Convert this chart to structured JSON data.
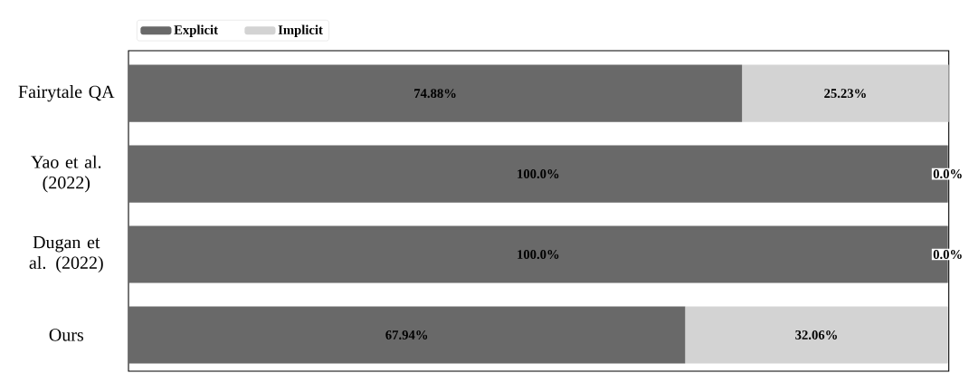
{
  "chart_data": {
    "type": "bar",
    "orientation": "horizontal",
    "stacked": true,
    "categories": [
      "Fairytale QA",
      "Yao et al. (2022)",
      "Dugan et al. (2022)",
      "Ours"
    ],
    "series": [
      {
        "name": "Explicit",
        "color": "#696969",
        "values": [
          74.88,
          100.0,
          100.0,
          67.94
        ],
        "value_labels": [
          "74.88%",
          "100.0%",
          "100.0%",
          "67.94%"
        ]
      },
      {
        "name": "Implicit",
        "color": "#d3d3d3",
        "values": [
          25.23,
          0.0,
          0.0,
          32.06
        ],
        "value_labels": [
          "25.23%",
          "0.0%",
          "0.0%",
          "32.06%"
        ]
      }
    ],
    "xlim": [
      0,
      100.11
    ],
    "tick_labels": "y",
    "legend": "top left"
  }
}
